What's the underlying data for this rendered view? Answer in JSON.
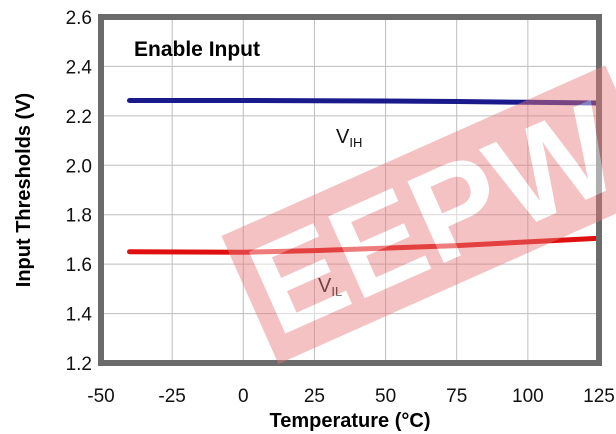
{
  "chart_data": {
    "type": "line",
    "title": "Enable Input",
    "xlabel": "Temperature (°C)",
    "ylabel": "Input Thresholds (V)",
    "xlim": [
      -50,
      125
    ],
    "ylim": [
      1.2,
      2.6
    ],
    "xticks": [
      "-50",
      "-25",
      "0",
      "25",
      "50",
      "75",
      "100",
      "125"
    ],
    "yticks": [
      "1.2",
      "1.4",
      "1.6",
      "1.8",
      "2.0",
      "2.2",
      "2.4",
      "2.6"
    ],
    "grid": true,
    "series": [
      {
        "name": "V",
        "subscript": "IH",
        "color": "#1a1a8c",
        "x": [
          -40,
          0,
          25,
          50,
          75,
          100,
          125
        ],
        "y": [
          2.262,
          2.262,
          2.261,
          2.26,
          2.258,
          2.255,
          2.252
        ]
      },
      {
        "name": "V",
        "subscript": "IL",
        "color": "#e01010",
        "x": [
          -40,
          0,
          25,
          50,
          75,
          100,
          125
        ],
        "y": [
          1.65,
          1.648,
          1.655,
          1.665,
          1.675,
          1.69,
          1.705
        ]
      }
    ],
    "watermark": "EEPW"
  }
}
